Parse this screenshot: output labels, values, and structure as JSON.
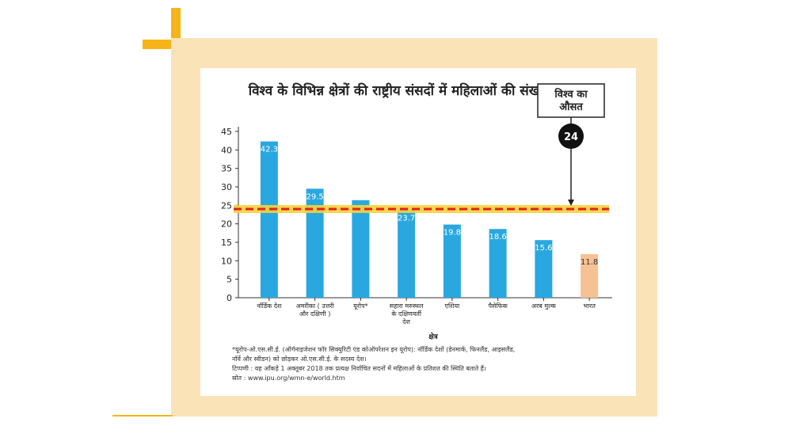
{
  "chart_data": {
    "type": "bar",
    "title": "विश्व के विभिन्न क्षेत्रों की राष्ट्रीय संसदों में महिलाओं की संख्या ( % )",
    "xlabel": "क्षेत्र",
    "ylabel": "",
    "ylim": [
      0,
      45
    ],
    "yticks": [
      "0",
      "5",
      "10",
      "15",
      "20",
      "25",
      "30",
      "35",
      "40",
      "45"
    ],
    "categories": [
      [
        "नॉर्डिक देश"
      ],
      [
        "अमरीका ( उत्तरी",
        "और दक्षिणी )"
      ],
      [
        "यूरोप*"
      ],
      [
        "सहारा मरुस्थल",
        "के दक्षिणवर्ती",
        "देश"
      ],
      [
        "एशिया"
      ],
      [
        "पैसेफिक"
      ],
      [
        "अरब मुल्क"
      ],
      [
        "भारत"
      ]
    ],
    "values": [
      42.3,
      29.5,
      26.4,
      23.7,
      19.8,
      18.6,
      15.6,
      11.8
    ],
    "value_labels": [
      "42.3",
      "29.5",
      "26.4",
      "23.7",
      "19.8",
      "18.6",
      "15.6",
      "11.8"
    ],
    "colors": [
      "#29a8e0",
      "#29a8e0",
      "#29a8e0",
      "#29a8e0",
      "#29a8e0",
      "#29a8e0",
      "#29a8e0",
      "#f6c193"
    ],
    "average": {
      "value": 24,
      "label_lines": [
        "विश्व का",
        "औसत"
      ],
      "badge": "24",
      "line_color": "#e0231d",
      "glow_color": "#f6d23a"
    },
    "grid": false
  },
  "notes": {
    "footnote_1": "*यूरोप-ओ.एस.सी.ई. (ऑर्गनाइजेशन फॉर सिक्युरिटी एंड कोऑपरेशन इन यूरोप): नॉर्डिक देशों (डेनमार्क, फिनलैंड, आइसलैंड,",
    "footnote_2": "नॉर्वे और स्वीडन) को छोड़कर ओ.एस.सी.ई. के सदस्य देश।",
    "note": "टिप्पणी : यह आँकड़े 1 अक्तूबर 2018 तक प्रत्यक्ष निर्वाचित सदनों में महिलाओं के प्रतिशत की स्थिति बताते हैं।",
    "source": "स्रोत : www.ipu.org/wmn-e/world.htm"
  }
}
